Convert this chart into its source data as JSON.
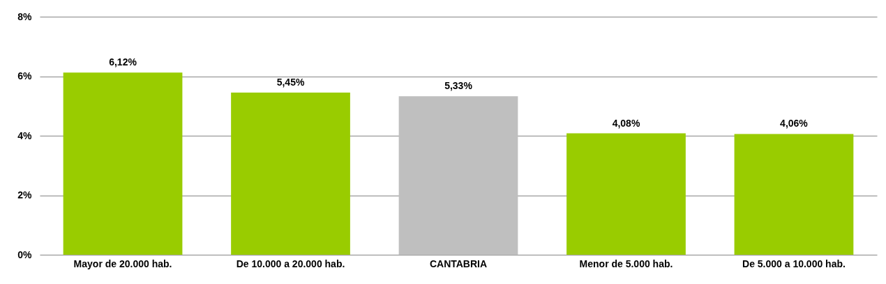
{
  "chart_data": {
    "type": "bar",
    "categories": [
      "Mayor de 20.000 hab.",
      "De 10.000 a 20.000 hab.",
      "CANTABRIA",
      "Menor de 5.000 hab.",
      "De 5.000 a 10.000 hab."
    ],
    "values": [
      6.12,
      5.45,
      5.33,
      4.08,
      4.06
    ],
    "colors": [
      "#99cc00",
      "#99cc00",
      "#bfbfbf",
      "#99cc00",
      "#99cc00"
    ],
    "value_labels": [
      "6,12%",
      "5,45%",
      "5,33%",
      "4,08%",
      "4,06%"
    ],
    "ylim": [
      0,
      8
    ],
    "yticks": [
      {
        "value": 0,
        "label": "0%"
      },
      {
        "value": 2,
        "label": "2%"
      },
      {
        "value": 4,
        "label": "4%"
      },
      {
        "value": 6,
        "label": "6%"
      },
      {
        "value": 8,
        "label": "8%"
      }
    ],
    "grid": "y"
  }
}
